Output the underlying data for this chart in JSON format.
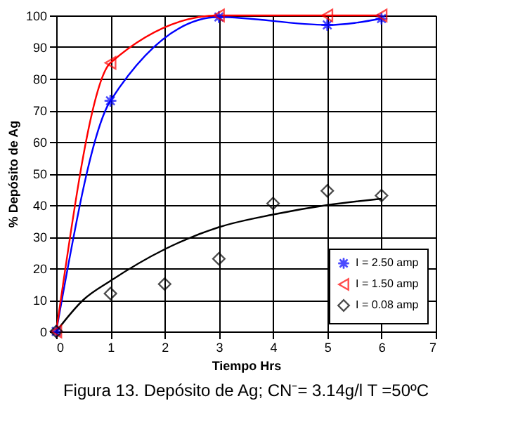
{
  "chart_data": {
    "type": "line",
    "xlabel": "Tiempo Hrs",
    "ylabel": "% Depósito de Ag",
    "annotations": [
      "Figura 13. Depósito de Ag; CN⁻= 3.14g/l T =50ºC"
    ],
    "xlim": [
      0,
      7
    ],
    "xticks": [
      0,
      1,
      2,
      3,
      4,
      5,
      6,
      7
    ],
    "ylim": [
      0,
      100
    ],
    "yticks": [
      0,
      10,
      20,
      30,
      40,
      50,
      60,
      70,
      80,
      90,
      100
    ],
    "grid": true,
    "legend": "bottom right",
    "line_style": "solid",
    "series": [
      {
        "name": "I = 2.50 amp",
        "color": "#0000ff",
        "type": "line",
        "marker": "star",
        "x": [
          0,
          1,
          3,
          5,
          6
        ],
        "values": [
          0,
          73,
          99.5,
          97,
          99
        ]
      },
      {
        "name": "I = 1.50 amp",
        "color": "#ff0000",
        "type": "line",
        "marker": "triangle",
        "x": [
          0,
          1,
          3,
          5,
          6
        ],
        "values": [
          0,
          85,
          100,
          100,
          100
        ]
      },
      {
        "name": "I = 0.08 amp",
        "color": "#000000",
        "type": "scatter",
        "marker": "diamond",
        "x": [
          0,
          1,
          2,
          3,
          4,
          5,
          6
        ],
        "values": [
          0,
          12,
          15,
          23,
          40.5,
          44.5,
          43
        ]
      },
      {
        "color": "#000000",
        "type": "line",
        "marker": "none",
        "x": [
          0,
          0.5,
          1,
          2,
          3,
          4,
          5,
          6
        ],
        "values": [
          0,
          10,
          16,
          26,
          33,
          37,
          40,
          42
        ]
      }
    ]
  }
}
